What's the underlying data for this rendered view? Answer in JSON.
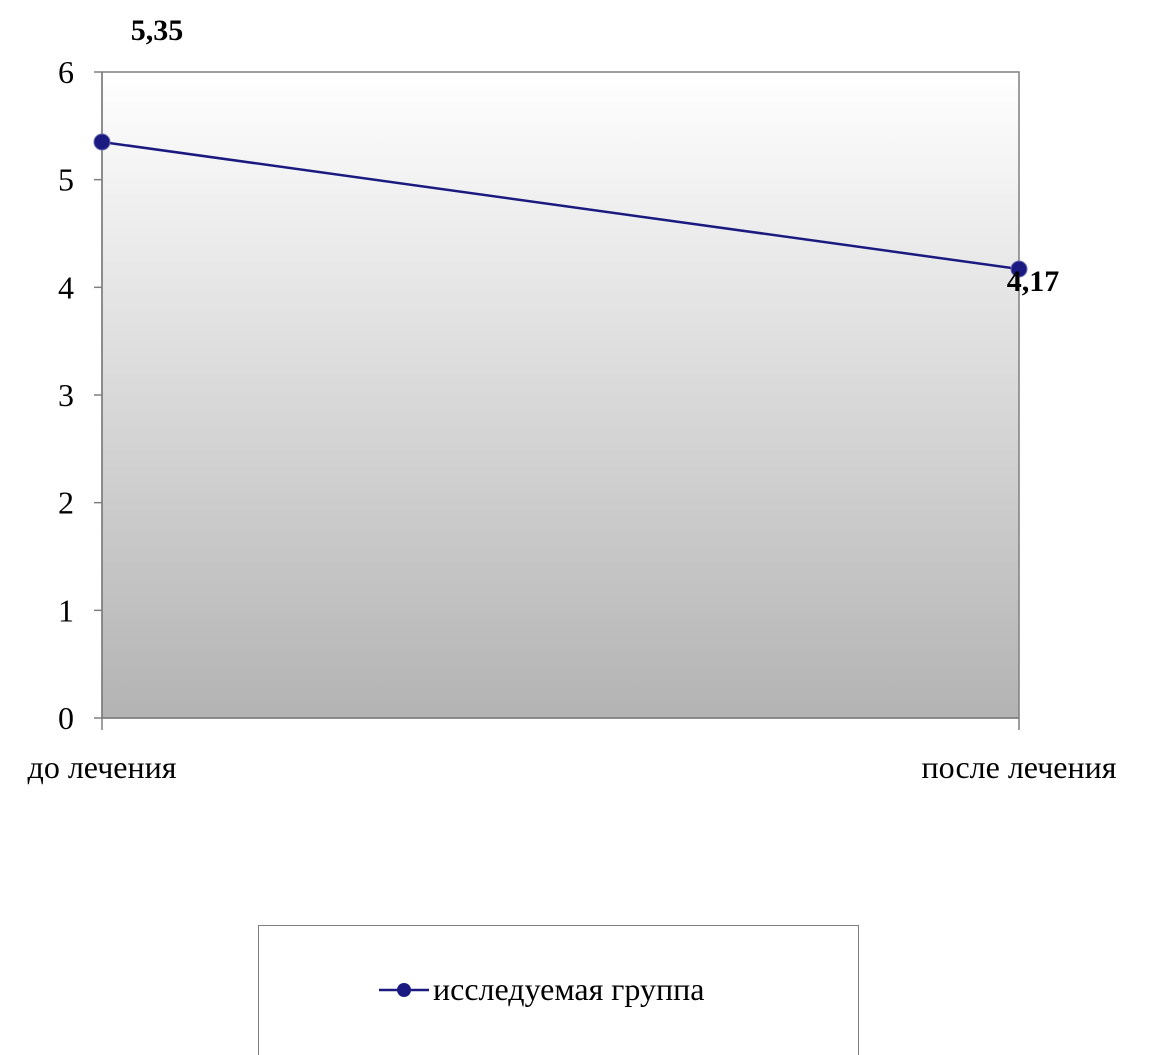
{
  "chart_data": {
    "type": "line",
    "categories": [
      "до лечения",
      "после лечения"
    ],
    "series": [
      {
        "name": "исследуемая группа",
        "values": [
          5.35,
          4.17
        ],
        "labels": [
          "5,35",
          "4,17"
        ],
        "color": "#1a1a80"
      }
    ],
    "ylim": [
      0,
      6
    ],
    "yticks": [
      "0",
      "1",
      "2",
      "3",
      "4",
      "5",
      "6"
    ],
    "legend": "bottom",
    "grid": false
  }
}
